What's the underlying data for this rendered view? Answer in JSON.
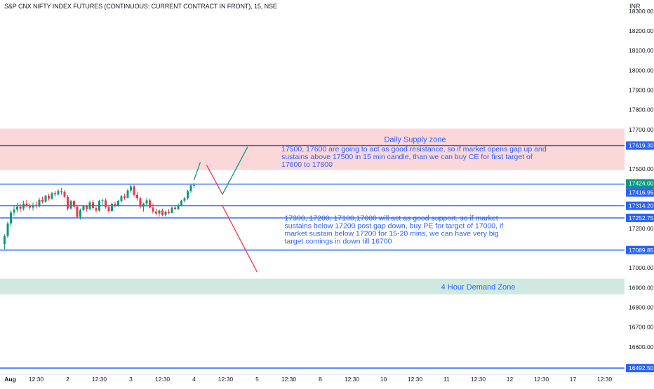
{
  "header": {
    "title": "S&P CNX NIFTY INDEX FUTURES (CONTINUOUS: CURRENT CONTRACT IN FRONT), 15, NSE",
    "currency": "INR"
  },
  "colors": {
    "up": "#089981",
    "down": "#f23645",
    "level_line": "#2962ff",
    "supply_zone": "#fcd7da",
    "demand_zone": "#cfe9e1",
    "annotation_text": "#2962ff"
  },
  "chart_data": {
    "type": "candlestick",
    "ylim": [
      16440,
      18350
    ],
    "y_ticks": [
      {
        "value": 18300,
        "label": "18300.00"
      },
      {
        "value": 18200,
        "label": "18200.00"
      },
      {
        "value": 18100,
        "label": "18100.00"
      },
      {
        "value": 18000,
        "label": "18000.00"
      },
      {
        "value": 17900,
        "label": "17900.00"
      },
      {
        "value": 17800,
        "label": "17800.00"
      },
      {
        "value": 17700,
        "label": "17700.00"
      },
      {
        "value": 17500,
        "label": "17500.00"
      },
      {
        "value": 17200,
        "label": "17200.00"
      },
      {
        "value": 17000,
        "label": "17000.00"
      },
      {
        "value": 16900,
        "label": "16900.00"
      },
      {
        "value": 16800,
        "label": "16800.00"
      },
      {
        "value": 16700,
        "label": "16700.00"
      },
      {
        "value": 16600,
        "label": "16600.00"
      },
      {
        "value": 16500,
        "label": "16500.00"
      }
    ],
    "x_ticks": [
      {
        "index": 1,
        "label": "Aug"
      },
      {
        "index": 11,
        "label": "12:30"
      },
      {
        "index": 21,
        "label": "2"
      },
      {
        "index": 31,
        "label": "12:30"
      },
      {
        "index": 41,
        "label": "3"
      },
      {
        "index": 51,
        "label": "12:30"
      },
      {
        "index": 61,
        "label": "4"
      },
      {
        "index": 71,
        "label": "12:30"
      },
      {
        "index": 81,
        "label": "5"
      },
      {
        "index": 91,
        "label": "12:30"
      },
      {
        "index": 101,
        "label": "8"
      },
      {
        "index": 111,
        "label": "12:30"
      },
      {
        "index": 121,
        "label": "10"
      },
      {
        "index": 131,
        "label": "12:30"
      },
      {
        "index": 141,
        "label": "11"
      },
      {
        "index": 151,
        "label": "12:30"
      },
      {
        "index": 161,
        "label": "12"
      },
      {
        "index": 171,
        "label": "12:30"
      },
      {
        "index": 181,
        "label": "17"
      },
      {
        "index": 191,
        "label": "12:30"
      }
    ],
    "horizontal_levels": [
      {
        "value": 17619.3,
        "label": "17619.30"
      },
      {
        "value": 17424.0,
        "label": "17424.00"
      },
      {
        "value": 17314.2,
        "label": "17314.20"
      },
      {
        "value": 17252.75,
        "label": "17252.75"
      },
      {
        "value": 17089.85,
        "label": "17089.85"
      },
      {
        "value": 16492.5,
        "label": "16492.50"
      }
    ],
    "price_badges": [
      {
        "value": 17424.0,
        "label": "17424.00",
        "color": "#089981"
      },
      {
        "value": 17416.95,
        "label": "17416.95",
        "color": "#2962ff"
      }
    ],
    "zones": [
      {
        "label": "Daily Supply zone",
        "y_top": 17705,
        "y_bottom": 17495,
        "kind": "supply",
        "label_value": 17652,
        "label_index": 131
      },
      {
        "label": "4 Hour Demand Zone",
        "y_top": 16945,
        "y_bottom": 16865,
        "kind": "demand",
        "label_value": 16905,
        "label_index": 151
      }
    ],
    "projection_lines": [
      {
        "color": "#089981",
        "from": [
          61,
          17445
        ],
        "to": [
          63,
          17535
        ]
      },
      {
        "color": "#089981",
        "from": [
          70,
          17372
        ],
        "to": [
          78,
          17613
        ]
      },
      {
        "color": "#f23645",
        "from": [
          65,
          17520
        ],
        "to": [
          70,
          17372
        ]
      },
      {
        "color": "#f23645",
        "from": [
          70,
          17314
        ],
        "to": [
          81,
          16978
        ]
      }
    ],
    "annotations": [
      {
        "lines": [
          "17500, 17600 are going to act as good resistance, so if market opens gap up and",
          "sustains above 17500 in 15 min candle, than we can buy CE for first target of",
          "17600 to 17800"
        ],
        "index": 86,
        "value": 17590
      },
      {
        "lines": [
          "17300, 17200, 17100,17000 will act as good support, so if market",
          "sustains below 17200 post gap down, buy PE for target of 17000, if",
          "market sustain below 17200 for 15-20 mins, we can have very big",
          "target comings in down till 16700"
        ],
        "index": 87,
        "value": 17240
      }
    ],
    "candles": [
      [
        17120,
        17170,
        17095,
        17160
      ],
      [
        17160,
        17235,
        17150,
        17225
      ],
      [
        17225,
        17290,
        17210,
        17280
      ],
      [
        17280,
        17315,
        17265,
        17295
      ],
      [
        17295,
        17330,
        17280,
        17310
      ],
      [
        17310,
        17325,
        17285,
        17300
      ],
      [
        17300,
        17340,
        17290,
        17325
      ],
      [
        17325,
        17345,
        17305,
        17315
      ],
      [
        17315,
        17325,
        17295,
        17305
      ],
      [
        17305,
        17330,
        17290,
        17318
      ],
      [
        17318,
        17335,
        17300,
        17312
      ],
      [
        17312,
        17355,
        17305,
        17345
      ],
      [
        17345,
        17360,
        17325,
        17335
      ],
      [
        17335,
        17370,
        17330,
        17365
      ],
      [
        17365,
        17375,
        17340,
        17350
      ],
      [
        17350,
        17385,
        17345,
        17378
      ],
      [
        17378,
        17390,
        17360,
        17372
      ],
      [
        17372,
        17400,
        17365,
        17390
      ],
      [
        17390,
        17405,
        17370,
        17385
      ],
      [
        17385,
        17395,
        17355,
        17360
      ],
      [
        17360,
        17370,
        17290,
        17300
      ],
      [
        17300,
        17345,
        17295,
        17338
      ],
      [
        17338,
        17345,
        17300,
        17310
      ],
      [
        17310,
        17320,
        17250,
        17258
      ],
      [
        17258,
        17300,
        17245,
        17292
      ],
      [
        17292,
        17320,
        17285,
        17315
      ],
      [
        17315,
        17320,
        17285,
        17298
      ],
      [
        17298,
        17340,
        17290,
        17332
      ],
      [
        17332,
        17345,
        17295,
        17302
      ],
      [
        17302,
        17312,
        17280,
        17290
      ],
      [
        17290,
        17345,
        17285,
        17338
      ],
      [
        17338,
        17350,
        17320,
        17342
      ],
      [
        17342,
        17352,
        17300,
        17308
      ],
      [
        17308,
        17318,
        17280,
        17288
      ],
      [
        17288,
        17330,
        17282,
        17324
      ],
      [
        17324,
        17335,
        17305,
        17315
      ],
      [
        17315,
        17345,
        17310,
        17338
      ],
      [
        17338,
        17370,
        17330,
        17362
      ],
      [
        17362,
        17375,
        17345,
        17355
      ],
      [
        17355,
        17400,
        17350,
        17392
      ],
      [
        17392,
        17420,
        17380,
        17412
      ],
      [
        17412,
        17420,
        17360,
        17370
      ],
      [
        17370,
        17385,
        17340,
        17352
      ],
      [
        17352,
        17360,
        17300,
        17310
      ],
      [
        17310,
        17330,
        17285,
        17325
      ],
      [
        17325,
        17355,
        17310,
        17342
      ],
      [
        17342,
        17350,
        17300,
        17305
      ],
      [
        17305,
        17325,
        17275,
        17285
      ],
      [
        17285,
        17300,
        17265,
        17275
      ],
      [
        17275,
        17295,
        17260,
        17290
      ],
      [
        17290,
        17300,
        17262,
        17268
      ],
      [
        17268,
        17290,
        17260,
        17284
      ],
      [
        17284,
        17298,
        17270,
        17278
      ],
      [
        17278,
        17310,
        17275,
        17305
      ],
      [
        17305,
        17318,
        17292,
        17298
      ],
      [
        17298,
        17325,
        17292,
        17318
      ],
      [
        17318,
        17345,
        17312,
        17340
      ],
      [
        17340,
        17360,
        17330,
        17352
      ],
      [
        17352,
        17395,
        17345,
        17388
      ],
      [
        17388,
        17425,
        17380,
        17418
      ],
      [
        17418,
        17430,
        17405,
        17420
      ]
    ]
  }
}
